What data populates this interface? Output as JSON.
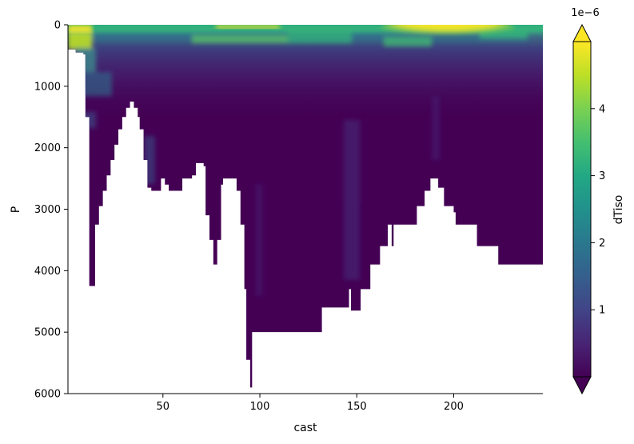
{
  "chart_data": {
    "type": "heatmap",
    "xlabel": "cast",
    "ylabel": "P",
    "colorbar_label": "dTiso",
    "colorbar_offset_text": "1e−6",
    "colormap": "viridis",
    "colorbar_extend": "both",
    "x_range": [
      1,
      246
    ],
    "y_range": [
      0,
      6000
    ],
    "y_inverted": true,
    "x_ticks": [
      50,
      100,
      150,
      200
    ],
    "x_tick_labels": [
      "50",
      "100",
      "150",
      "200"
    ],
    "y_ticks": [
      0,
      1000,
      2000,
      3000,
      4000,
      5000,
      6000
    ],
    "y_tick_labels": [
      "0",
      "1000",
      "2000",
      "3000",
      "4000",
      "5000",
      "6000"
    ],
    "color_range": [
      0,
      5e-06
    ],
    "colorbar_ticks": [
      1,
      2,
      3,
      4
    ],
    "colorbar_tick_labels": [
      "1",
      "2",
      "3",
      "4"
    ],
    "seafloor_depth_profile": [
      [
        1,
        400
      ],
      [
        5,
        450
      ],
      [
        9,
        480
      ],
      [
        10,
        1500
      ],
      [
        12,
        4250
      ],
      [
        15,
        3250
      ],
      [
        17,
        2950
      ],
      [
        19,
        2700
      ],
      [
        21,
        2450
      ],
      [
        23,
        2200
      ],
      [
        25,
        1950
      ],
      [
        27,
        1700
      ],
      [
        29,
        1500
      ],
      [
        31,
        1350
      ],
      [
        33,
        1250
      ],
      [
        35,
        1350
      ],
      [
        37,
        1500
      ],
      [
        38,
        1700
      ],
      [
        40,
        2200
      ],
      [
        42,
        2650
      ],
      [
        44,
        2700
      ],
      [
        47,
        2700
      ],
      [
        49,
        2500
      ],
      [
        51,
        2600
      ],
      [
        53,
        2700
      ],
      [
        58,
        2700
      ],
      [
        60,
        2500
      ],
      [
        65,
        2450
      ],
      [
        67,
        2250
      ],
      [
        71,
        2300
      ],
      [
        72,
        3100
      ],
      [
        74,
        3500
      ],
      [
        76,
        3900
      ],
      [
        78,
        3500
      ],
      [
        80,
        2600
      ],
      [
        81,
        2500
      ],
      [
        86,
        2500
      ],
      [
        88,
        2700
      ],
      [
        90,
        3250
      ],
      [
        92,
        4300
      ],
      [
        93,
        5450
      ],
      [
        95,
        5900
      ],
      [
        96,
        5000
      ],
      [
        131,
        5000
      ],
      [
        132,
        4600
      ],
      [
        145,
        4600
      ],
      [
        146,
        4300
      ],
      [
        147,
        4650
      ],
      [
        151,
        4650
      ],
      [
        152,
        4300
      ],
      [
        156,
        4300
      ],
      [
        157,
        3900
      ],
      [
        161,
        3900
      ],
      [
        162,
        3600
      ],
      [
        165,
        3600
      ],
      [
        166,
        3250
      ],
      [
        168,
        3600
      ],
      [
        169,
        3250
      ],
      [
        180,
        3250
      ],
      [
        181,
        2950
      ],
      [
        184,
        2950
      ],
      [
        185,
        2700
      ],
      [
        188,
        2500
      ],
      [
        192,
        2650
      ],
      [
        195,
        2950
      ],
      [
        200,
        3050
      ],
      [
        201,
        3250
      ],
      [
        211,
        3250
      ],
      [
        212,
        3600
      ],
      [
        222,
        3600
      ],
      [
        223,
        3900
      ],
      [
        236,
        3900
      ],
      [
        246,
        3900
      ]
    ],
    "surface_layer": {
      "depth_range": [
        0,
        1000
      ],
      "max_value_region": {
        "x_range": [
          185,
          230
        ],
        "depth_range": [
          0,
          250
        ],
        "value": 5e-06
      },
      "typical_upper_value": 2.2e-06,
      "typical_deep_value": 3e-07
    }
  }
}
